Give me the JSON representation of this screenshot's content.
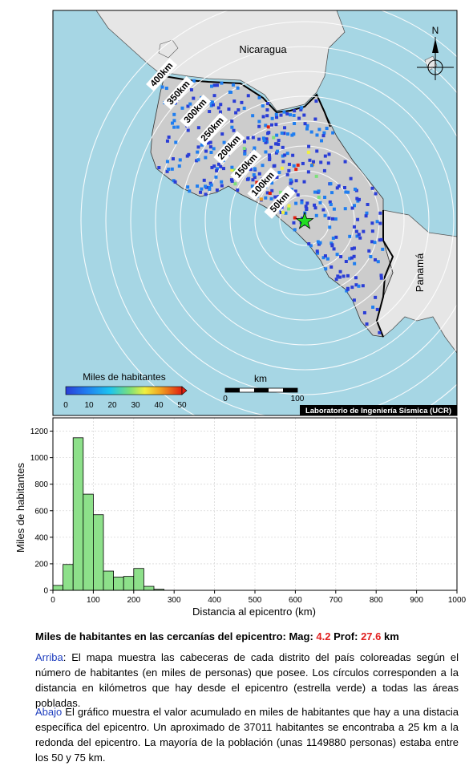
{
  "map": {
    "labels": {
      "country_north": "Nicaragua",
      "country_south": "Panamá",
      "north_arrow": "N",
      "credit": "Laboratorio de Ingeniería Sísmica (UCR)"
    },
    "ring_labels": [
      "50km",
      "100km",
      "150km",
      "200km",
      "250km",
      "300km",
      "350km",
      "400km"
    ],
    "colorbar": {
      "title": "Miles de habitantes",
      "ticks": [
        "0",
        "10",
        "20",
        "30",
        "40",
        "50"
      ],
      "colors": [
        "#2a3dd6",
        "#1f7ef0",
        "#1cc4f0",
        "#7be07a",
        "#f0f040",
        "#f0a020",
        "#e02010"
      ]
    },
    "scalebar": {
      "title": "km",
      "ticks": [
        "0",
        "100"
      ]
    },
    "colors": {
      "sea": "#a6d6e4",
      "land": "#cccccc",
      "land_other": "#e6e6e6",
      "epicenter": "#22dd22"
    }
  },
  "chart_data": {
    "type": "bar",
    "xlabel": "Distancia al epicentro (km)",
    "ylabel": "Miles de habitantes",
    "xlim": [
      0,
      1000
    ],
    "ylim": [
      0,
      1300
    ],
    "xticks": [
      0,
      100,
      200,
      300,
      400,
      500,
      600,
      700,
      800,
      900,
      1000
    ],
    "yticks": [
      0,
      200,
      400,
      600,
      800,
      1000,
      1200
    ],
    "bin_width": 25,
    "bin_starts": [
      0,
      25,
      50,
      75,
      100,
      125,
      150,
      175,
      200,
      225,
      250
    ],
    "values": [
      37,
      195,
      1150,
      725,
      570,
      145,
      100,
      105,
      165,
      30,
      8
    ],
    "bar_color": "#8de08a"
  },
  "summary": {
    "title_prefix": "Miles de habitantes en las cercanías del epicentro: Mag:",
    "mag": "4.2",
    "prof_label": "Prof:",
    "prof": "27.6",
    "unit": "km"
  },
  "notes": {
    "top_label": "Arriba",
    "top_text": ": El mapa muestra las cabeceras de cada distrito del país coloreadas según el número de habitantes (en miles de personas) que posee.  Los círculos corresponden a la distancia en kilómetros que hay desde el epicentro (estrella verde) a todas las áreas pobladas.",
    "bottom_label": "Abajo",
    "bottom_text": " El gráfico muestra el valor acumulado en miles de habitantes que hay a una distacia específica del epicentro.  Un aproximado de 37011 habitantes se encontraba a 25 km a la redonda del epicentro.  La mayoría de la población (unas 1149880 personas) estaba entre los 50 y 75 km."
  }
}
